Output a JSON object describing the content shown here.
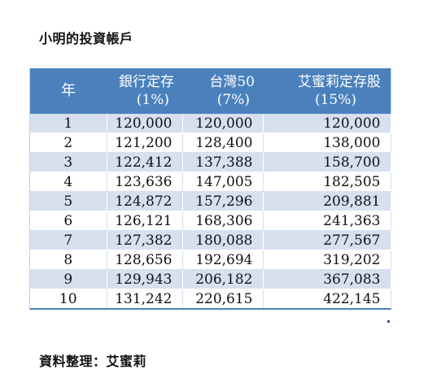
{
  "title": "小明的投資帳戶",
  "table": {
    "headers": [
      {
        "line1": "年",
        "line2": ""
      },
      {
        "line1": "銀行定存",
        "line2": "(1%)"
      },
      {
        "line1": "台灣50",
        "line2": "(7%)"
      },
      {
        "line1": "艾蜜莉定存股",
        "line2": "(15%)"
      }
    ],
    "rows": [
      [
        "1",
        "120,000",
        "120,000",
        "120,000"
      ],
      [
        "2",
        "121,200",
        "128,400",
        "138,000"
      ],
      [
        "3",
        "122,412",
        "137,388",
        "158,700"
      ],
      [
        "4",
        "123,636",
        "147,005",
        "182,505"
      ],
      [
        "5",
        "124,872",
        "157,296",
        "209,881"
      ],
      [
        "6",
        "126,121",
        "168,306",
        "241,363"
      ],
      [
        "7",
        "127,382",
        "180,088",
        "277,567"
      ],
      [
        "8",
        "128,656",
        "192,694",
        "319,202"
      ],
      [
        "9",
        "129,943",
        "206,182",
        "367,083"
      ],
      [
        "10",
        "131,242",
        "220,615",
        "422,145"
      ]
    ]
  },
  "credit": "資料整理：艾蜜莉",
  "colors": {
    "header_bg": "#4a81bd",
    "header_text": "#ffffff",
    "band_row": "#d6e0ef",
    "plain_row": "#ffffff"
  }
}
